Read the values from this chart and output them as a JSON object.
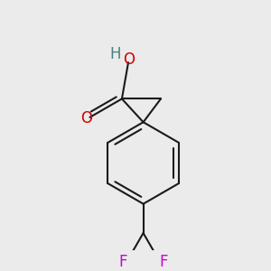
{
  "background_color": "#ebebeb",
  "bond_color": "#1a1a1a",
  "oxygen_color": "#cc0000",
  "fluorine_color": "#cc00cc",
  "hydrogen_color": "#4a7f7f",
  "bond_width": 1.5,
  "font_size_atoms": 12,
  "xlim": [
    -1.1,
    1.1
  ],
  "ylim": [
    -1.4,
    1.15
  ],
  "figsize": [
    3.0,
    3.0
  ],
  "dpi": 100
}
